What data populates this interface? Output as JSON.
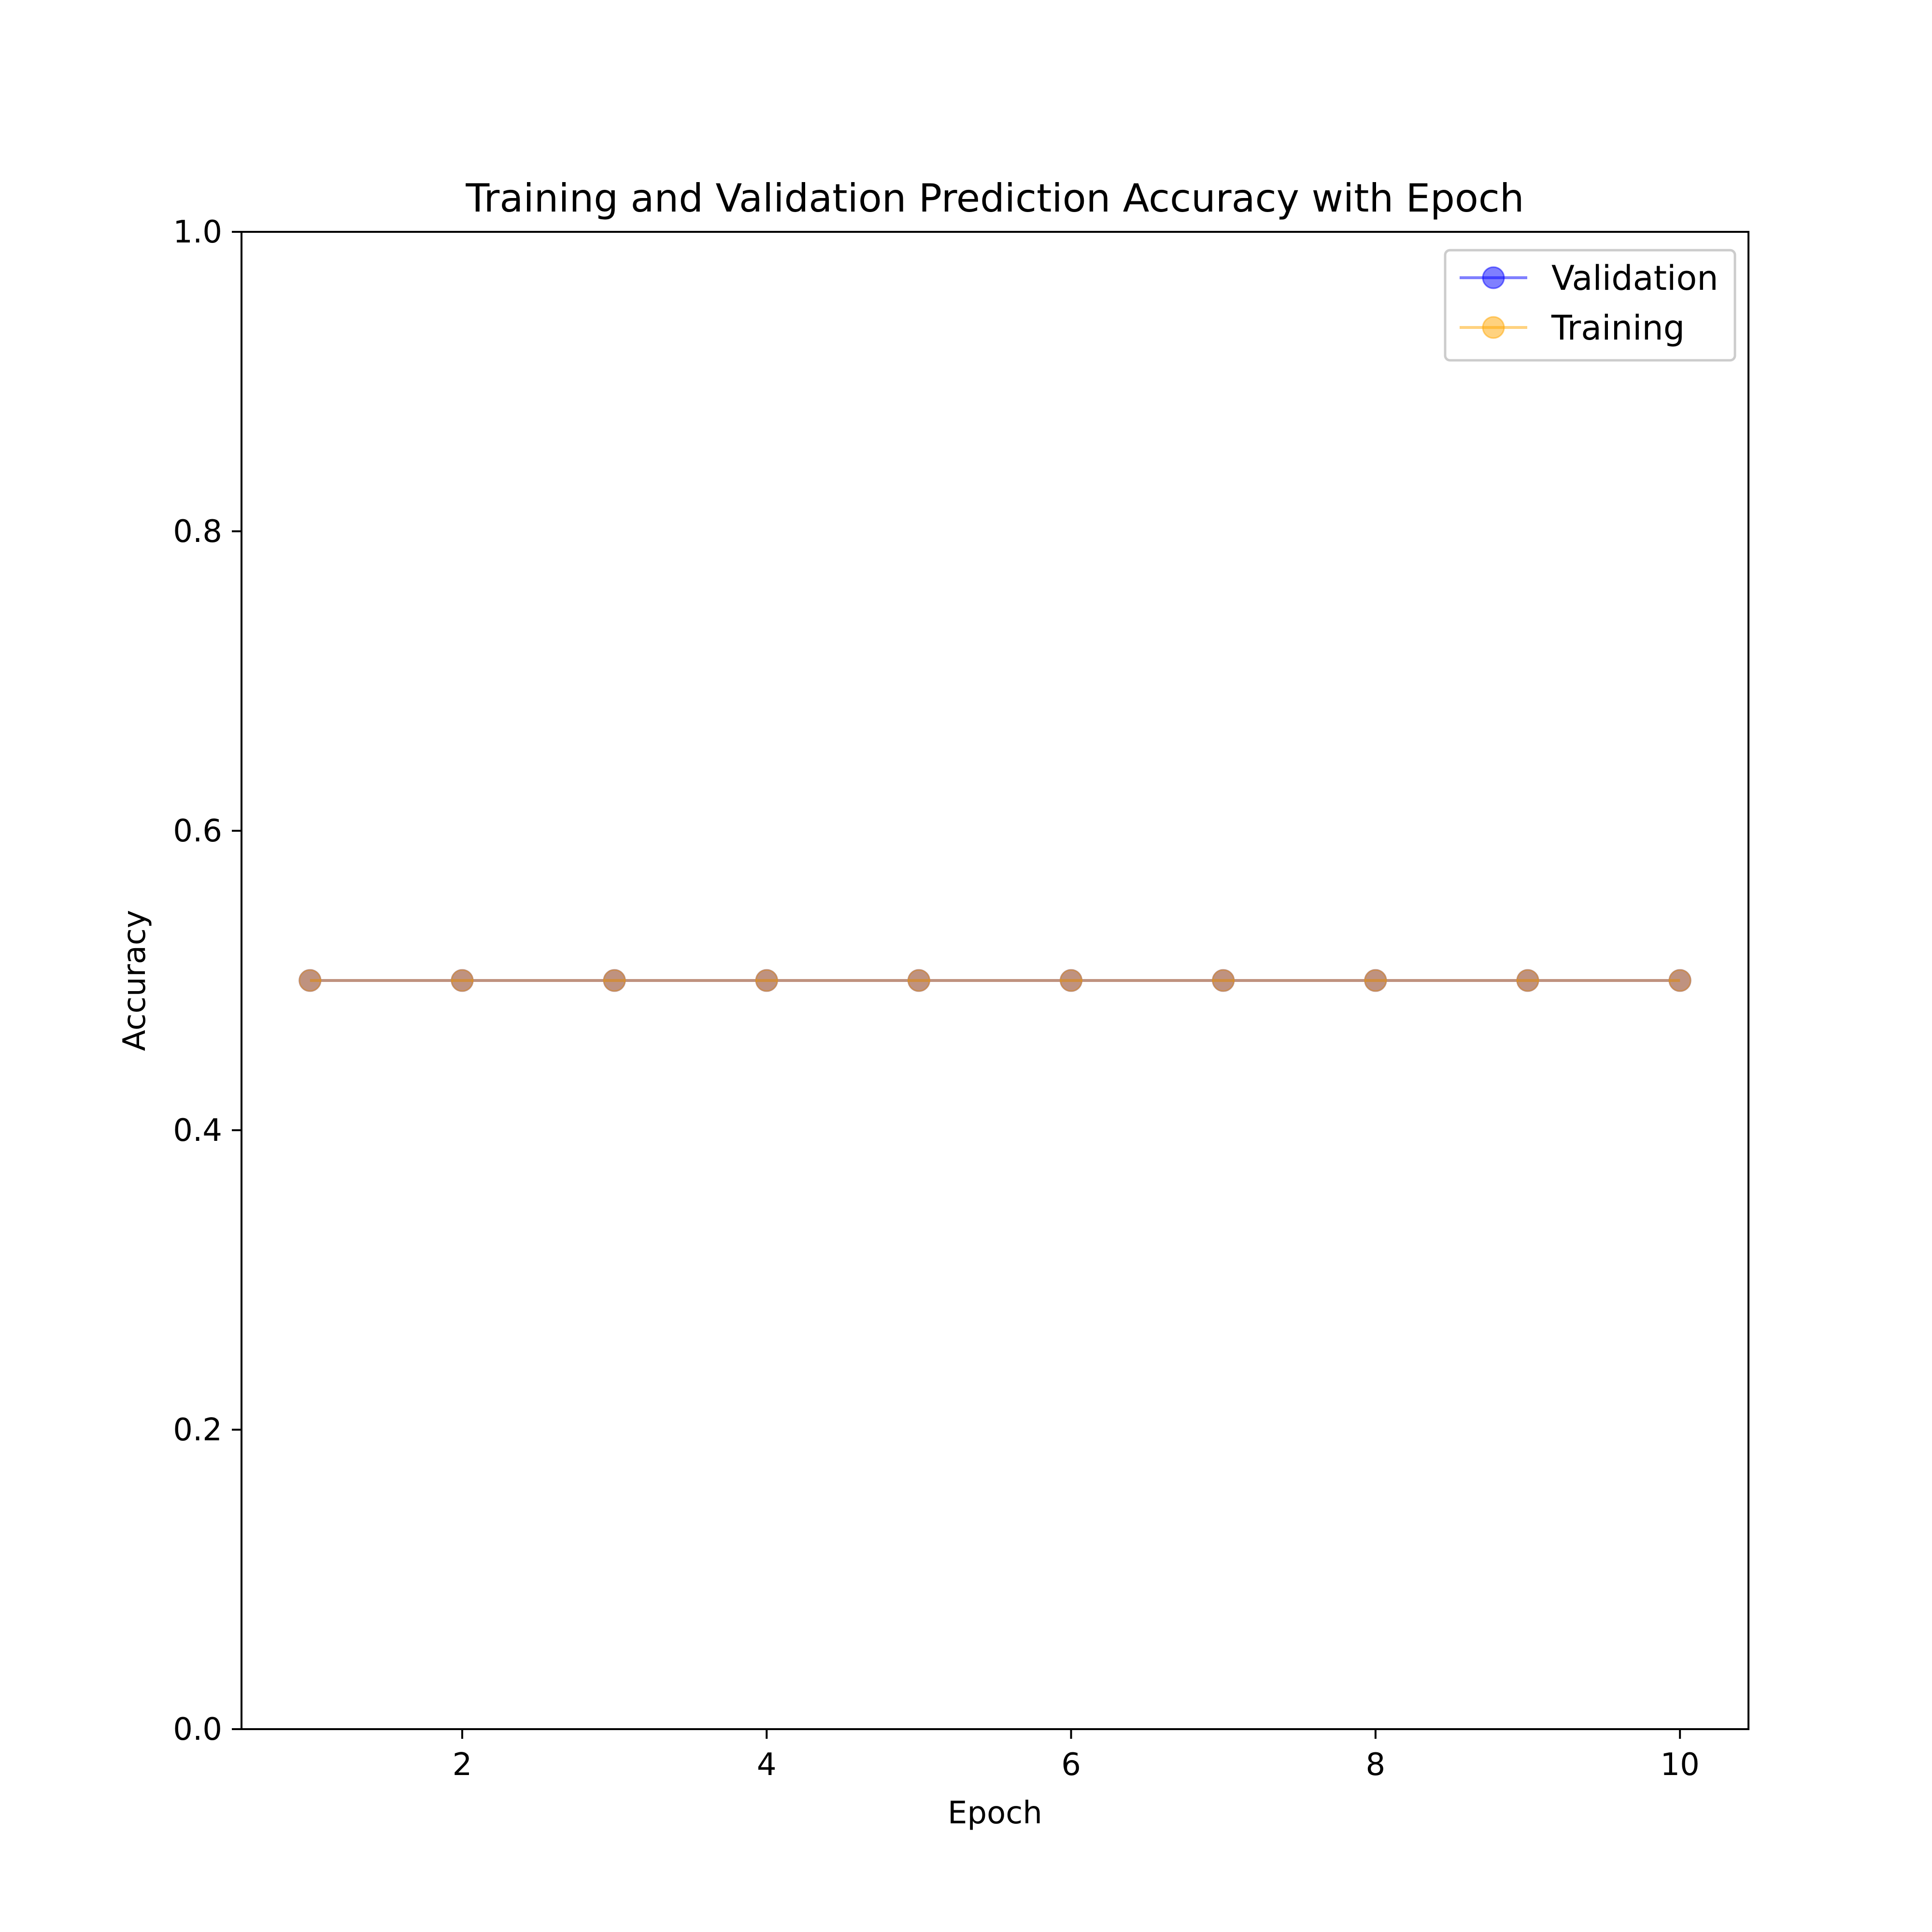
{
  "chart_data": {
    "type": "line",
    "title": "Training and Validation Prediction Accuracy with Epoch",
    "xlabel": "Epoch",
    "ylabel": "Accuracy",
    "x": [
      1,
      2,
      3,
      4,
      5,
      6,
      7,
      8,
      9,
      10
    ],
    "xlim": [
      0.55,
      10.45
    ],
    "ylim": [
      0.0,
      1.0
    ],
    "xticks": [
      2,
      4,
      6,
      8,
      10
    ],
    "yticks": [
      0.0,
      0.2,
      0.4,
      0.6,
      0.8,
      1.0
    ],
    "xtick_labels": [
      "2",
      "4",
      "6",
      "8",
      "10"
    ],
    "ytick_labels": [
      "0.0",
      "0.2",
      "0.4",
      "0.6",
      "0.8",
      "1.0"
    ],
    "grid": false,
    "legend_position": "top-right",
    "series": [
      {
        "name": "Validation",
        "color": "#0000ff",
        "marker": "circle",
        "values": [
          0.5,
          0.5,
          0.5,
          0.5,
          0.5,
          0.5,
          0.5,
          0.5,
          0.5,
          0.5
        ]
      },
      {
        "name": "Training",
        "color": "#ffa500",
        "marker": "circle",
        "values": [
          0.5,
          0.5,
          0.5,
          0.5,
          0.5,
          0.5,
          0.5,
          0.5,
          0.5,
          0.5
        ]
      }
    ]
  }
}
